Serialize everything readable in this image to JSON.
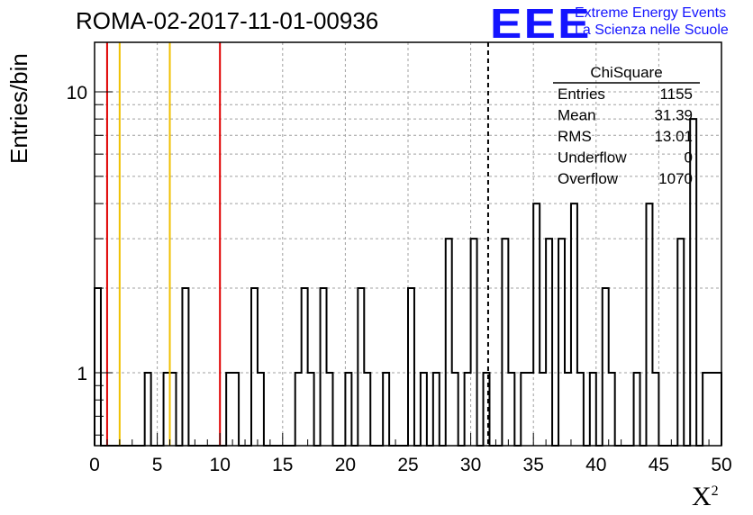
{
  "header": {
    "title": "ROMA-02-2017-11-01-00936",
    "logo_mark": "EEE",
    "logo_line1": "Extreme Energy Events",
    "logo_line2": "La Scienza nelle Scuole"
  },
  "colors": {
    "logo": "#1414ff",
    "histogram": "#000000",
    "red_line": "#e00000",
    "yellow_line": "#f0c000",
    "grid": "#a0a0a0"
  },
  "chart_data": {
    "type": "histogram",
    "xlabel": "X",
    "xlabel_superscript": "2",
    "ylabel": "Entries/bin",
    "xlim": [
      0,
      50
    ],
    "ylim": [
      0.55,
      15
    ],
    "yscale": "log",
    "grid": true,
    "bin_width": 0.5,
    "bins": [
      [
        0,
        2
      ],
      [
        0.5,
        0
      ],
      [
        1,
        0
      ],
      [
        1.5,
        0
      ],
      [
        2,
        0
      ],
      [
        2.5,
        0
      ],
      [
        3,
        0
      ],
      [
        3.5,
        0
      ],
      [
        4,
        1
      ],
      [
        4.5,
        0
      ],
      [
        5,
        0
      ],
      [
        5.5,
        1
      ],
      [
        6,
        1
      ],
      [
        6.5,
        0
      ],
      [
        7,
        2
      ],
      [
        7.5,
        0
      ],
      [
        8,
        0
      ],
      [
        8.5,
        0
      ],
      [
        9,
        0
      ],
      [
        9.5,
        0
      ],
      [
        10,
        0
      ],
      [
        10.5,
        1
      ],
      [
        11,
        1
      ],
      [
        11.5,
        0
      ],
      [
        12,
        0
      ],
      [
        12.5,
        2
      ],
      [
        13,
        1
      ],
      [
        13.5,
        0
      ],
      [
        14,
        0
      ],
      [
        14.5,
        0
      ],
      [
        15,
        0
      ],
      [
        15.5,
        0
      ],
      [
        16,
        1
      ],
      [
        16.5,
        2
      ],
      [
        17,
        1
      ],
      [
        17.5,
        0
      ],
      [
        18,
        2
      ],
      [
        18.5,
        1
      ],
      [
        19,
        0
      ],
      [
        19.5,
        0
      ],
      [
        20,
        1
      ],
      [
        20.5,
        0
      ],
      [
        21,
        2
      ],
      [
        21.5,
        1
      ],
      [
        22,
        0
      ],
      [
        22.5,
        0
      ],
      [
        23,
        1
      ],
      [
        23.5,
        0
      ],
      [
        24,
        0
      ],
      [
        24.5,
        0
      ],
      [
        25,
        2
      ],
      [
        25.5,
        0
      ],
      [
        26,
        1
      ],
      [
        26.5,
        0
      ],
      [
        27,
        1
      ],
      [
        27.5,
        0
      ],
      [
        28,
        3
      ],
      [
        28.5,
        1
      ],
      [
        29,
        0
      ],
      [
        29.5,
        1
      ],
      [
        30,
        3
      ],
      [
        30.5,
        0
      ],
      [
        31,
        1
      ],
      [
        31.5,
        0
      ],
      [
        32,
        0
      ],
      [
        32.5,
        3
      ],
      [
        33,
        1
      ],
      [
        33.5,
        0
      ],
      [
        34,
        1
      ],
      [
        34.5,
        1
      ],
      [
        35,
        4
      ],
      [
        35.5,
        1
      ],
      [
        36,
        3
      ],
      [
        36.5,
        0
      ],
      [
        37,
        3
      ],
      [
        37.5,
        1
      ],
      [
        38,
        4
      ],
      [
        38.5,
        1
      ],
      [
        39,
        0
      ],
      [
        39.5,
        1
      ],
      [
        40,
        0
      ],
      [
        40.5,
        2
      ],
      [
        41,
        1
      ],
      [
        41.5,
        0
      ],
      [
        42,
        0
      ],
      [
        42.5,
        0
      ],
      [
        43,
        1
      ],
      [
        43.5,
        0
      ],
      [
        44,
        4
      ],
      [
        44.5,
        1
      ],
      [
        45,
        0
      ],
      [
        45.5,
        0
      ],
      [
        46,
        0
      ],
      [
        46.5,
        3
      ],
      [
        47,
        0
      ],
      [
        47.5,
        8
      ],
      [
        48,
        0
      ],
      [
        48.5,
        1
      ],
      [
        49,
        1
      ],
      [
        49.5,
        1
      ]
    ],
    "vertical_lines": [
      {
        "x": 1,
        "color": "red",
        "style": "solid"
      },
      {
        "x": 2,
        "color": "yellow",
        "style": "solid"
      },
      {
        "x": 6,
        "color": "yellow",
        "style": "solid"
      },
      {
        "x": 10,
        "color": "red",
        "style": "solid"
      },
      {
        "x": 31.39,
        "color": "black",
        "style": "dashed"
      }
    ],
    "x_ticks": [
      "0",
      "5",
      "10",
      "15",
      "20",
      "25",
      "30",
      "35",
      "40",
      "45",
      "50"
    ],
    "y_ticks": [
      "1",
      "10"
    ],
    "stats_box": {
      "title": "ChiSquare",
      "rows": [
        {
          "label": "Entries",
          "value": "1155"
        },
        {
          "label": "Mean",
          "value": "31.39"
        },
        {
          "label": "RMS",
          "value": "13.01"
        },
        {
          "label": "Underflow",
          "value": "0"
        },
        {
          "label": "Overflow",
          "value": "1070"
        }
      ]
    }
  }
}
